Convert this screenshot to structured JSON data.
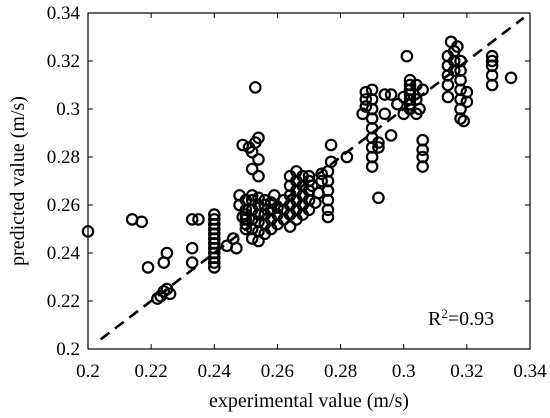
{
  "chart_data": {
    "type": "scatter",
    "title": "",
    "xlabel": "experimental value (m/s)",
    "ylabel": "predicted value (m/s)",
    "xlim": [
      0.2,
      0.34
    ],
    "ylim": [
      0.2,
      0.34
    ],
    "xticks": [
      "0.2",
      "0.22",
      "0.24",
      "0.26",
      "0.28",
      "0.3",
      "0.32",
      "0.34"
    ],
    "yticks": [
      "0.2",
      "0.22",
      "0.24",
      "0.26",
      "0.28",
      "0.3",
      "0.32",
      "0.34"
    ],
    "grid": false,
    "marker": "open-circle",
    "marker_color": "#000000",
    "reference_line": {
      "style": "dashed",
      "color": "#000000",
      "x": [
        0.204,
        0.338
      ],
      "y": [
        0.204,
        0.338
      ]
    },
    "annotation": {
      "prefix": "R",
      "superscript": "2",
      "suffix": "=0.93"
    },
    "points": [
      [
        0.2,
        0.249
      ],
      [
        0.214,
        0.254
      ],
      [
        0.217,
        0.253
      ],
      [
        0.219,
        0.234
      ],
      [
        0.222,
        0.221
      ],
      [
        0.223,
        0.222
      ],
      [
        0.224,
        0.224
      ],
      [
        0.225,
        0.225
      ],
      [
        0.224,
        0.236
      ],
      [
        0.225,
        0.24
      ],
      [
        0.226,
        0.223
      ],
      [
        0.233,
        0.254
      ],
      [
        0.235,
        0.254
      ],
      [
        0.233,
        0.242
      ],
      [
        0.233,
        0.236
      ],
      [
        0.24,
        0.234
      ],
      [
        0.24,
        0.236
      ],
      [
        0.24,
        0.238
      ],
      [
        0.24,
        0.24
      ],
      [
        0.24,
        0.242
      ],
      [
        0.24,
        0.244
      ],
      [
        0.24,
        0.246
      ],
      [
        0.24,
        0.248
      ],
      [
        0.24,
        0.25
      ],
      [
        0.24,
        0.252
      ],
      [
        0.24,
        0.254
      ],
      [
        0.24,
        0.256
      ],
      [
        0.244,
        0.243
      ],
      [
        0.246,
        0.246
      ],
      [
        0.247,
        0.242
      ],
      [
        0.248,
        0.26
      ],
      [
        0.248,
        0.264
      ],
      [
        0.249,
        0.255
      ],
      [
        0.249,
        0.285
      ],
      [
        0.25,
        0.25
      ],
      [
        0.25,
        0.252
      ],
      [
        0.25,
        0.254
      ],
      [
        0.25,
        0.256
      ],
      [
        0.25,
        0.258
      ],
      [
        0.25,
        0.262
      ],
      [
        0.251,
        0.284
      ],
      [
        0.252,
        0.282
      ],
      [
        0.252,
        0.275
      ],
      [
        0.253,
        0.309
      ],
      [
        0.253,
        0.286
      ],
      [
        0.254,
        0.288
      ],
      [
        0.254,
        0.272
      ],
      [
        0.254,
        0.279
      ],
      [
        0.252,
        0.246
      ],
      [
        0.252,
        0.25
      ],
      [
        0.252,
        0.254
      ],
      [
        0.252,
        0.258
      ],
      [
        0.252,
        0.262
      ],
      [
        0.252,
        0.264
      ],
      [
        0.254,
        0.245
      ],
      [
        0.254,
        0.249
      ],
      [
        0.254,
        0.253
      ],
      [
        0.254,
        0.256
      ],
      [
        0.254,
        0.26
      ],
      [
        0.254,
        0.263
      ],
      [
        0.256,
        0.248
      ],
      [
        0.256,
        0.252
      ],
      [
        0.256,
        0.256
      ],
      [
        0.256,
        0.26
      ],
      [
        0.256,
        0.262
      ],
      [
        0.258,
        0.25
      ],
      [
        0.258,
        0.254
      ],
      [
        0.258,
        0.258
      ],
      [
        0.258,
        0.261
      ],
      [
        0.259,
        0.264
      ],
      [
        0.26,
        0.252
      ],
      [
        0.26,
        0.256
      ],
      [
        0.26,
        0.259
      ],
      [
        0.262,
        0.254
      ],
      [
        0.262,
        0.258
      ],
      [
        0.262,
        0.262
      ],
      [
        0.264,
        0.251
      ],
      [
        0.264,
        0.256
      ],
      [
        0.264,
        0.26
      ],
      [
        0.264,
        0.264
      ],
      [
        0.264,
        0.268
      ],
      [
        0.264,
        0.272
      ],
      [
        0.266,
        0.254
      ],
      [
        0.266,
        0.258
      ],
      [
        0.266,
        0.262
      ],
      [
        0.266,
        0.266
      ],
      [
        0.266,
        0.27
      ],
      [
        0.266,
        0.274
      ],
      [
        0.268,
        0.256
      ],
      [
        0.268,
        0.26
      ],
      [
        0.268,
        0.264
      ],
      [
        0.268,
        0.268
      ],
      [
        0.268,
        0.272
      ],
      [
        0.27,
        0.258
      ],
      [
        0.27,
        0.262
      ],
      [
        0.27,
        0.266
      ],
      [
        0.27,
        0.27
      ],
      [
        0.27,
        0.272
      ],
      [
        0.271,
        0.268
      ],
      [
        0.272,
        0.261
      ],
      [
        0.273,
        0.265
      ],
      [
        0.274,
        0.27
      ],
      [
        0.274,
        0.273
      ],
      [
        0.276,
        0.255
      ],
      [
        0.276,
        0.258
      ],
      [
        0.276,
        0.262
      ],
      [
        0.276,
        0.266
      ],
      [
        0.276,
        0.27
      ],
      [
        0.276,
        0.274
      ],
      [
        0.277,
        0.278
      ],
      [
        0.277,
        0.285
      ],
      [
        0.282,
        0.28
      ],
      [
        0.287,
        0.298
      ],
      [
        0.288,
        0.301
      ],
      [
        0.288,
        0.304
      ],
      [
        0.288,
        0.307
      ],
      [
        0.29,
        0.276
      ],
      [
        0.29,
        0.28
      ],
      [
        0.29,
        0.284
      ],
      [
        0.29,
        0.288
      ],
      [
        0.29,
        0.292
      ],
      [
        0.29,
        0.296
      ],
      [
        0.29,
        0.3
      ],
      [
        0.29,
        0.304
      ],
      [
        0.29,
        0.308
      ],
      [
        0.292,
        0.263
      ],
      [
        0.292,
        0.286
      ],
      [
        0.292,
        0.284
      ],
      [
        0.294,
        0.298
      ],
      [
        0.294,
        0.306
      ],
      [
        0.296,
        0.289
      ],
      [
        0.296,
        0.306
      ],
      [
        0.298,
        0.302
      ],
      [
        0.3,
        0.305
      ],
      [
        0.3,
        0.298
      ],
      [
        0.301,
        0.322
      ],
      [
        0.302,
        0.3
      ],
      [
        0.302,
        0.302
      ],
      [
        0.302,
        0.304
      ],
      [
        0.302,
        0.306
      ],
      [
        0.302,
        0.308
      ],
      [
        0.302,
        0.31
      ],
      [
        0.302,
        0.312
      ],
      [
        0.304,
        0.298
      ],
      [
        0.304,
        0.304
      ],
      [
        0.304,
        0.31
      ],
      [
        0.305,
        0.3
      ],
      [
        0.306,
        0.308
      ],
      [
        0.306,
        0.276
      ],
      [
        0.306,
        0.28
      ],
      [
        0.306,
        0.283
      ],
      [
        0.306,
        0.287
      ],
      [
        0.314,
        0.305
      ],
      [
        0.314,
        0.31
      ],
      [
        0.314,
        0.314
      ],
      [
        0.314,
        0.318
      ],
      [
        0.314,
        0.322
      ],
      [
        0.315,
        0.328
      ],
      [
        0.316,
        0.316
      ],
      [
        0.316,
        0.32
      ],
      [
        0.316,
        0.324
      ],
      [
        0.317,
        0.326
      ],
      [
        0.318,
        0.296
      ],
      [
        0.318,
        0.3
      ],
      [
        0.318,
        0.304
      ],
      [
        0.318,
        0.308
      ],
      [
        0.318,
        0.312
      ],
      [
        0.318,
        0.316
      ],
      [
        0.318,
        0.32
      ],
      [
        0.319,
        0.295
      ],
      [
        0.32,
        0.303
      ],
      [
        0.32,
        0.307
      ],
      [
        0.328,
        0.31
      ],
      [
        0.328,
        0.314
      ],
      [
        0.328,
        0.318
      ],
      [
        0.328,
        0.32
      ],
      [
        0.328,
        0.322
      ],
      [
        0.334,
        0.313
      ]
    ]
  }
}
